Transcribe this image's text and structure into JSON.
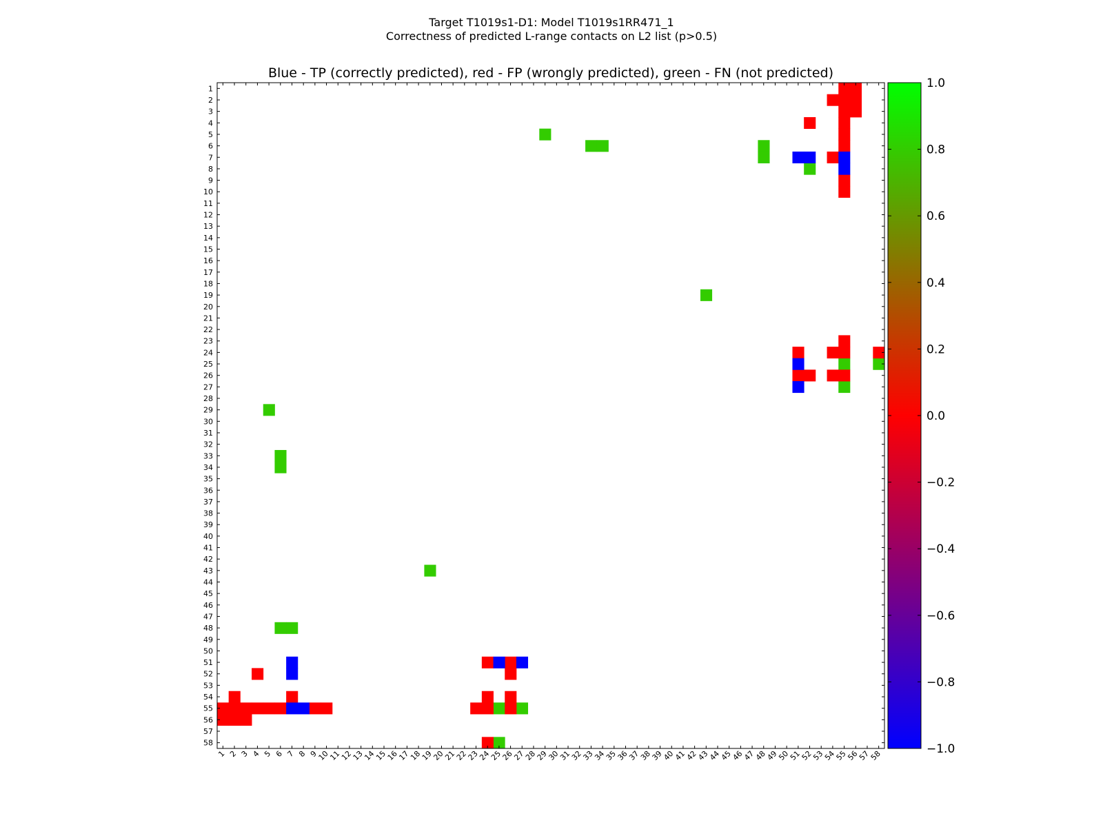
{
  "figure": {
    "title_line1": "Target T1019s1-D1: Model T1019s1RR471_1",
    "title_line2": "Correctness of predicted L-range contacts on L2 list (p>0.5)"
  },
  "chart_data": {
    "type": "heatmap",
    "title": "Blue - TP (correctly predicted), red - FP (wrongly predicted), green - FN (not predicted)",
    "x_ticks": [
      "1",
      "2",
      "3",
      "4",
      "5",
      "6",
      "7",
      "8",
      "9",
      "10",
      "11",
      "12",
      "13",
      "14",
      "15",
      "16",
      "17",
      "18",
      "19",
      "20",
      "21",
      "22",
      "23",
      "24",
      "25",
      "26",
      "27",
      "28",
      "29",
      "30",
      "31",
      "32",
      "33",
      "34",
      "35",
      "36",
      "37",
      "38",
      "39",
      "40",
      "41",
      "42",
      "43",
      "44",
      "45",
      "46",
      "47",
      "48",
      "49",
      "50",
      "51",
      "52",
      "53",
      "54",
      "55",
      "56",
      "57",
      "58"
    ],
    "y_ticks": [
      "1",
      "2",
      "3",
      "4",
      "5",
      "6",
      "7",
      "8",
      "9",
      "10",
      "11",
      "12",
      "13",
      "14",
      "15",
      "16",
      "17",
      "18",
      "19",
      "20",
      "21",
      "22",
      "23",
      "24",
      "25",
      "26",
      "27",
      "28",
      "29",
      "30",
      "31",
      "32",
      "33",
      "34",
      "35",
      "36",
      "37",
      "38",
      "39",
      "40",
      "41",
      "42",
      "43",
      "44",
      "45",
      "46",
      "47",
      "48",
      "49",
      "50",
      "51",
      "52",
      "53",
      "54",
      "55",
      "56",
      "57",
      "58"
    ],
    "n": 58,
    "colorbar": {
      "min": -1.0,
      "max": 1.0,
      "ticks": [
        "1.0",
        "0.8",
        "0.6",
        "0.4",
        "0.2",
        "0.0",
        "−0.2",
        "−0.4",
        "−0.6",
        "−0.8",
        "−1.0"
      ],
      "stops": [
        "#0000ff",
        "#ff0000",
        "#00ff00"
      ]
    },
    "legend": {
      "TP": "blue",
      "FP": "red",
      "FN": "green"
    },
    "cells": {
      "TP": [
        [
          7,
          51
        ],
        [
          7,
          52
        ],
        [
          7,
          55
        ],
        [
          8,
          55
        ],
        [
          25,
          51
        ],
        [
          27,
          51
        ],
        [
          51,
          7
        ],
        [
          52,
          7
        ],
        [
          55,
          7
        ],
        [
          55,
          8
        ],
        [
          51,
          25
        ],
        [
          51,
          27
        ]
      ],
      "FP": [
        [
          1,
          55
        ],
        [
          1,
          56
        ],
        [
          2,
          54
        ],
        [
          2,
          55
        ],
        [
          2,
          56
        ],
        [
          3,
          55
        ],
        [
          3,
          56
        ],
        [
          4,
          52
        ],
        [
          4,
          55
        ],
        [
          5,
          55
        ],
        [
          6,
          55
        ],
        [
          7,
          54
        ],
        [
          9,
          55
        ],
        [
          10,
          55
        ],
        [
          23,
          55
        ],
        [
          24,
          51
        ],
        [
          24,
          54
        ],
        [
          24,
          55
        ],
        [
          24,
          58
        ],
        [
          26,
          51
        ],
        [
          26,
          52
        ],
        [
          26,
          54
        ],
        [
          26,
          55
        ],
        [
          55,
          1
        ],
        [
          55,
          2
        ],
        [
          55,
          3
        ],
        [
          55,
          4
        ],
        [
          55,
          5
        ],
        [
          55,
          6
        ],
        [
          55,
          9
        ],
        [
          55,
          10
        ],
        [
          56,
          1
        ],
        [
          56,
          2
        ],
        [
          56,
          3
        ],
        [
          54,
          2
        ],
        [
          52,
          4
        ],
        [
          54,
          7
        ],
        [
          51,
          24
        ],
        [
          51,
          26
        ],
        [
          52,
          26
        ],
        [
          54,
          24
        ],
        [
          54,
          26
        ],
        [
          55,
          23
        ],
        [
          55,
          24
        ],
        [
          55,
          26
        ],
        [
          58,
          24
        ]
      ],
      "FN": [
        [
          5,
          29
        ],
        [
          6,
          33
        ],
        [
          6,
          34
        ],
        [
          6,
          48
        ],
        [
          7,
          48
        ],
        [
          8,
          52
        ],
        [
          19,
          43
        ],
        [
          25,
          55
        ],
        [
          25,
          58
        ],
        [
          27,
          55
        ],
        [
          29,
          5
        ],
        [
          33,
          6
        ],
        [
          34,
          6
        ],
        [
          43,
          19
        ],
        [
          48,
          6
        ],
        [
          48,
          7
        ],
        [
          55,
          25
        ],
        [
          55,
          27
        ],
        [
          58,
          25
        ]
      ]
    }
  }
}
